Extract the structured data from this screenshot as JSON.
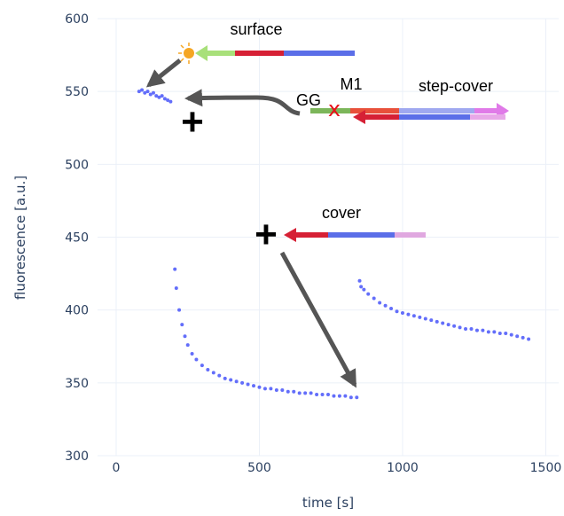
{
  "chart_data": {
    "type": "scatter",
    "xlabel": "time [s]",
    "ylabel": "fluorescence [a.u.]",
    "xlim": [
      -65,
      1545
    ],
    "xticks": [
      0,
      500,
      1000,
      1500
    ],
    "ylim": [
      300,
      600
    ],
    "yticks": [
      300,
      350,
      400,
      450,
      500,
      550,
      600
    ],
    "grid": true,
    "series": [
      {
        "color": "#636efa",
        "x": [
          80,
          90,
          100,
          110,
          120,
          130,
          140,
          150,
          160,
          170,
          180,
          190,
          205,
          210,
          220,
          230,
          240,
          250,
          265,
          280,
          300,
          320,
          340,
          360,
          380,
          400,
          420,
          440,
          460,
          480,
          500,
          520,
          540,
          560,
          580,
          600,
          620,
          640,
          660,
          680,
          700,
          720,
          740,
          760,
          780,
          800,
          820,
          840,
          850,
          855,
          865,
          880,
          900,
          920,
          940,
          960,
          980,
          1000,
          1020,
          1040,
          1060,
          1080,
          1100,
          1120,
          1140,
          1160,
          1180,
          1200,
          1220,
          1240,
          1260,
          1280,
          1300,
          1320,
          1340,
          1360,
          1380,
          1400,
          1420,
          1440
        ],
        "values": [
          550,
          551,
          549,
          550,
          548,
          549,
          547,
          546,
          547,
          545,
          544,
          543,
          428,
          415,
          400,
          390,
          382,
          376,
          370,
          366,
          362,
          359,
          357,
          355,
          353,
          352,
          351,
          350,
          349,
          348,
          347,
          346,
          346,
          345,
          345,
          344,
          344,
          343,
          343,
          343,
          342,
          342,
          342,
          341,
          341,
          341,
          340,
          340,
          420,
          416,
          414,
          411,
          408,
          405,
          403,
          401,
          399,
          398,
          397,
          396,
          395,
          394,
          393,
          392,
          391,
          390,
          389,
          388,
          387,
          387,
          386,
          386,
          385,
          385,
          384,
          384,
          383,
          382,
          381,
          380
        ]
      }
    ],
    "annotations": [
      "surface",
      "GG",
      "M1",
      "step-cover",
      "cover",
      "x",
      "+",
      "+"
    ]
  }
}
